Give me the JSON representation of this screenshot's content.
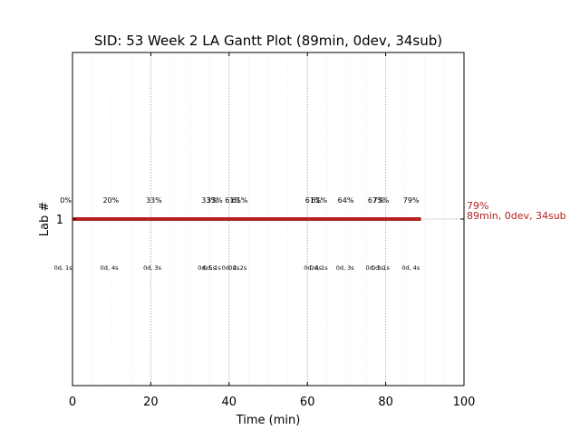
{
  "chart_data": {
    "type": "gantt",
    "title": "SID: 53 Week 2 LA Gantt Plot (89min, 0dev, 34sub)",
    "xlabel": "Time (min)",
    "ylabel": "Lab #",
    "xlim": [
      0,
      100
    ],
    "x_ticks": [
      "0",
      "20",
      "40",
      "60",
      "80",
      "100"
    ],
    "y_ticks": [
      "1"
    ],
    "grid": true,
    "bar": {
      "lab": 1,
      "start": 0,
      "end": 89,
      "color": "#b22222"
    },
    "end_label": {
      "percent": "79%",
      "summary": "89min, 0dev, 34sub"
    },
    "event_lines": [
      20,
      40,
      60,
      80
    ],
    "pct_labels": [
      {
        "x": -1.7,
        "text": "0%"
      },
      {
        "x": 9.8,
        "text": "20%"
      },
      {
        "x": 20.8,
        "text": "33%"
      },
      {
        "x": 35.0,
        "text": "33%"
      },
      {
        "x": 36.3,
        "text": "33%"
      },
      {
        "x": 41.0,
        "text": "61%"
      },
      {
        "x": 42.7,
        "text": "61%"
      },
      {
        "x": 61.5,
        "text": "61%"
      },
      {
        "x": 63.0,
        "text": "61%"
      },
      {
        "x": 69.8,
        "text": "64%"
      },
      {
        "x": 77.5,
        "text": "67%"
      },
      {
        "x": 78.8,
        "text": "73%"
      },
      {
        "x": 86.5,
        "text": "79%"
      }
    ],
    "dur_labels": [
      {
        "x": -2.4,
        "text": "0d, 1s"
      },
      {
        "x": 9.4,
        "text": "0d, 4s"
      },
      {
        "x": 20.4,
        "text": "0d, 3s"
      },
      {
        "x": 34.3,
        "text": "0d, 5s"
      },
      {
        "x": 35.6,
        "text": "0d, 1s"
      },
      {
        "x": 40.4,
        "text": "0d, 2s"
      },
      {
        "x": 42.2,
        "text": "0d, 2s"
      },
      {
        "x": 61.4,
        "text": "0d, 4s"
      },
      {
        "x": 62.9,
        "text": "0d, 1s"
      },
      {
        "x": 69.6,
        "text": "0d, 3s"
      },
      {
        "x": 77.2,
        "text": "0d, 3s"
      },
      {
        "x": 78.7,
        "text": "0d, 1s"
      },
      {
        "x": 86.4,
        "text": "0d, 4s"
      }
    ]
  }
}
